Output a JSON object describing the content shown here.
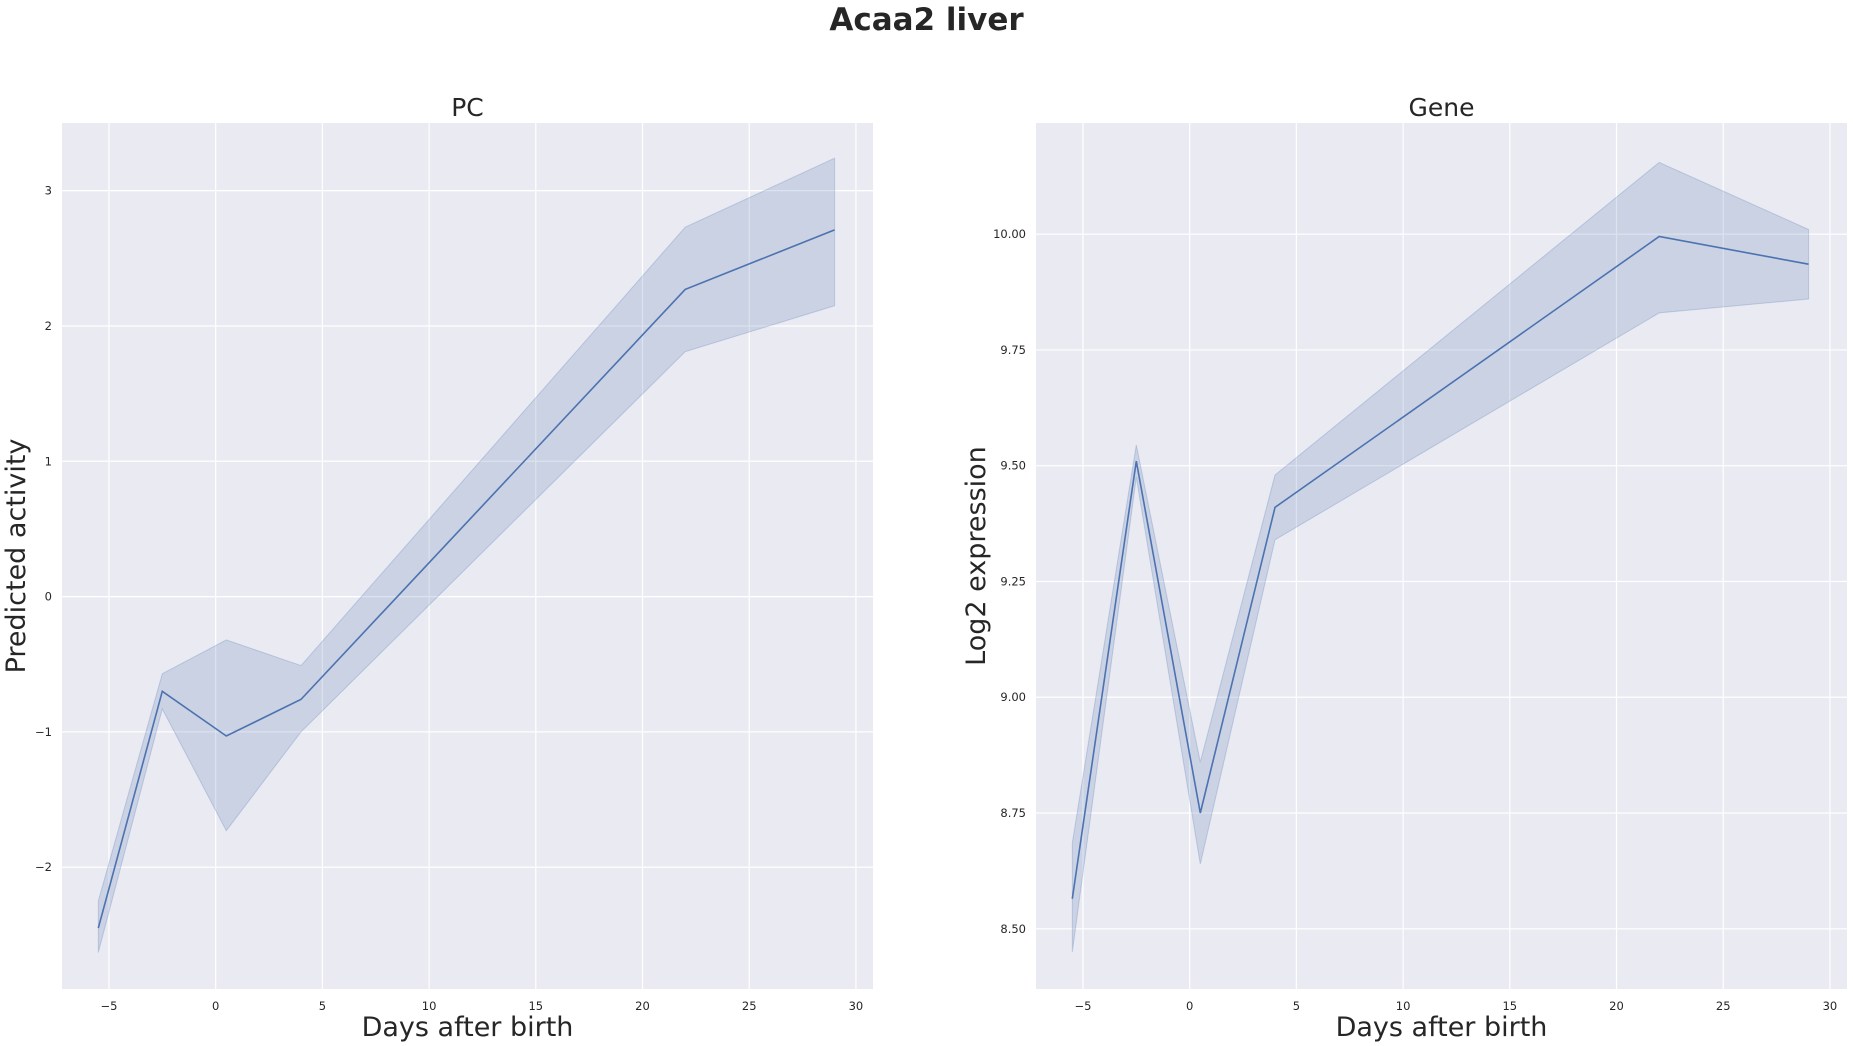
{
  "figure": {
    "title": "Acaa2 liver"
  },
  "colors": {
    "background": "#eaeaf2",
    "grid": "#ffffff",
    "line": "#4c72b0",
    "band": "#4c72b0"
  },
  "chart_data": [
    {
      "type": "line",
      "title": "PC",
      "xlabel": "Days after birth",
      "ylabel": "Predicted activity",
      "xlim": [
        -7.2,
        30.8
      ],
      "ylim": [
        -2.9,
        3.5
      ],
      "xticks": [
        -5,
        0,
        5,
        10,
        15,
        20,
        25,
        30
      ],
      "yticks": [
        -2,
        -1,
        0,
        1,
        2,
        3
      ],
      "ytick_labels": [
        "−2",
        "−1",
        "0",
        "1",
        "2",
        "3"
      ],
      "xtick_labels": [
        "−5",
        "0",
        "5",
        "10",
        "15",
        "20",
        "25",
        "30"
      ],
      "grid": true,
      "series": [
        {
          "x": [
            -5.5,
            -2.5,
            0.5,
            4,
            22,
            29
          ],
          "y": [
            -2.45,
            -0.7,
            -1.03,
            -0.76,
            2.27,
            2.71
          ],
          "lower": [
            -2.63,
            -0.83,
            -1.73,
            -1.0,
            1.81,
            2.15
          ],
          "upper": [
            -2.25,
            -0.57,
            -0.32,
            -0.51,
            2.73,
            3.24
          ]
        }
      ]
    },
    {
      "type": "line",
      "title": "Gene",
      "xlabel": "Days after birth",
      "ylabel": "Log2 expression",
      "xlim": [
        -7.2,
        30.8
      ],
      "ylim": [
        8.37,
        10.24
      ],
      "xticks": [
        -5,
        0,
        5,
        10,
        15,
        20,
        25,
        30
      ],
      "yticks": [
        8.5,
        8.75,
        9.0,
        9.25,
        9.5,
        9.75,
        10.0
      ],
      "ytick_labels": [
        "8.50",
        "8.75",
        "9.00",
        "9.25",
        "9.50",
        "9.75",
        "10.00"
      ],
      "xtick_labels": [
        "−5",
        "0",
        "5",
        "10",
        "15",
        "20",
        "25",
        "30"
      ],
      "grid": true,
      "series": [
        {
          "x": [
            -5.5,
            -2.5,
            0.5,
            4,
            22,
            29
          ],
          "y": [
            8.565,
            9.51,
            8.75,
            9.41,
            9.995,
            9.935
          ],
          "lower": [
            8.45,
            9.475,
            8.64,
            9.34,
            9.83,
            9.86
          ],
          "upper": [
            8.685,
            9.545,
            8.86,
            9.48,
            10.155,
            10.01
          ]
        }
      ]
    }
  ]
}
